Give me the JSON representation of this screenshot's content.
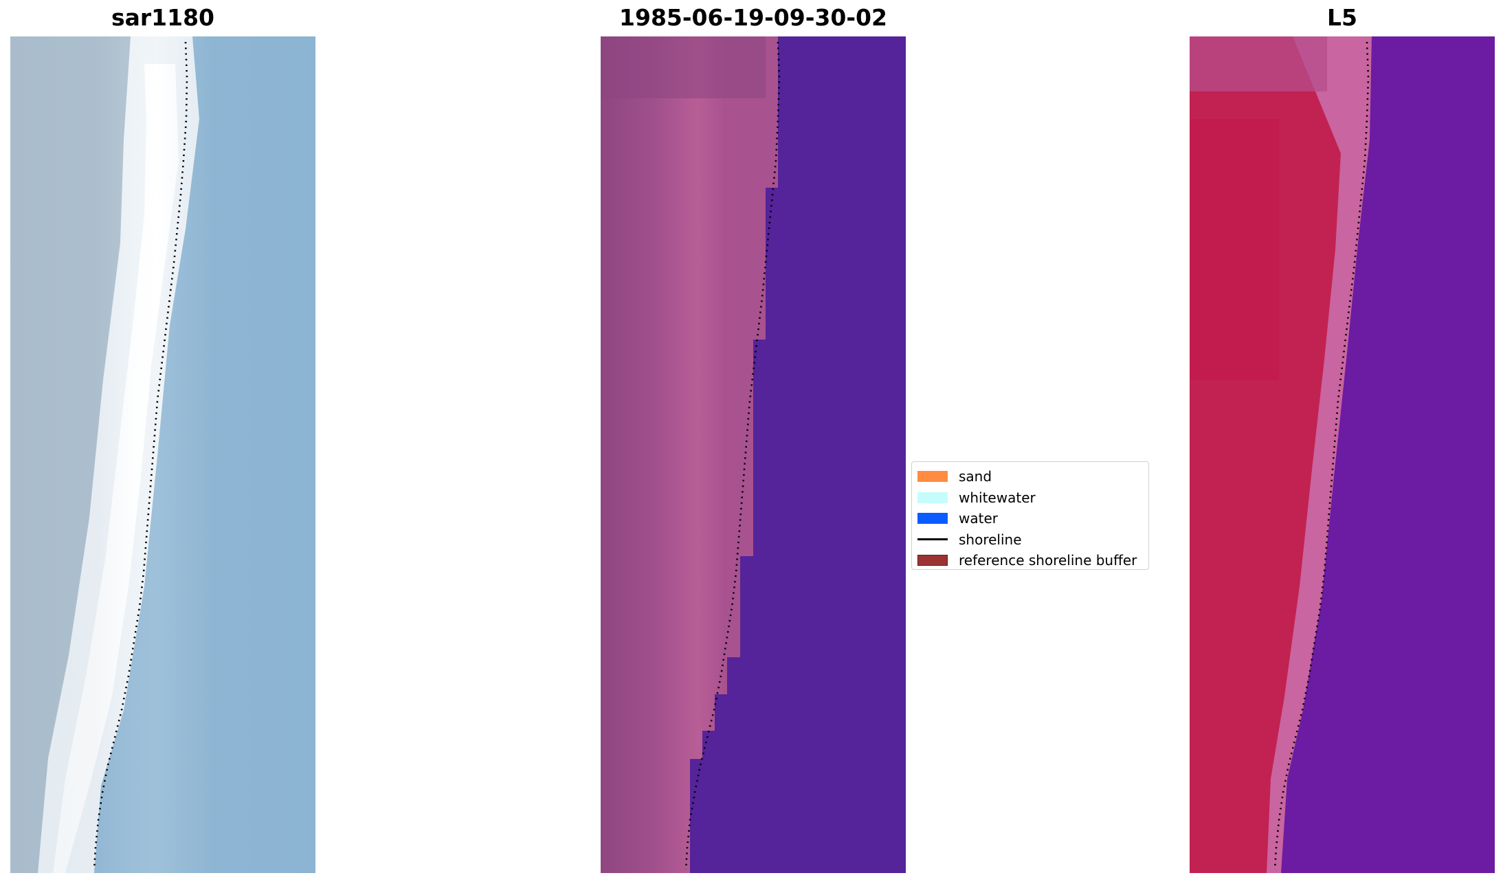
{
  "titles": {
    "left": "sar1180",
    "middle": "1985-06-19-09-30-02",
    "right": "L5"
  },
  "panels": {
    "left": {
      "content": "RGB satellite image with detected shoreline",
      "water_color": "#8bb2d1",
      "surf_color": "#ffffff",
      "land_color": "#a9bccb"
    },
    "middle": {
      "content": "classified image",
      "sand_class_color": "#b85c94",
      "water_class_color": "#55239a"
    },
    "right": {
      "content": "false-color composite",
      "land_color": "#c8204d",
      "surf_color": "#c865a0",
      "water_color": "#6a1aa0"
    }
  },
  "legend": {
    "items": [
      {
        "label": "sand",
        "color": "#ff8c40",
        "kind": "patch"
      },
      {
        "label": "whitewater",
        "color": "#c6fcfc",
        "kind": "patch"
      },
      {
        "label": "water",
        "color": "#0a5cff",
        "kind": "patch"
      },
      {
        "label": "shoreline",
        "color": "#000000",
        "kind": "line"
      },
      {
        "label": "reference shoreline buffer",
        "color": "#9c3333",
        "kind": "patch"
      }
    ]
  }
}
